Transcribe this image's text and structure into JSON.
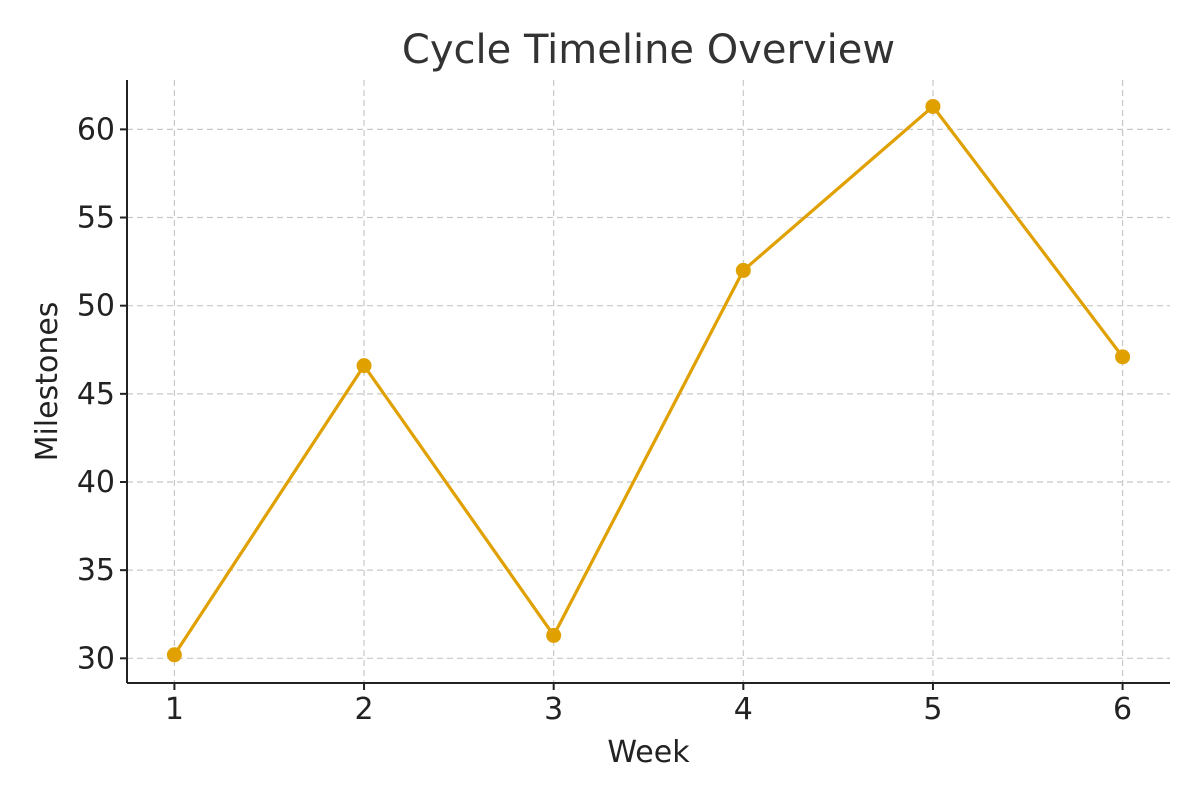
{
  "chart_data": {
    "type": "line",
    "title": "Cycle Timeline Overview",
    "xlabel": "Week",
    "ylabel": "Milestones",
    "x": [
      1,
      2,
      3,
      4,
      5,
      6
    ],
    "x_tick_labels": [
      "1",
      "2",
      "3",
      "4",
      "5",
      "6"
    ],
    "y_ticks": [
      30,
      35,
      40,
      45,
      50,
      55,
      60
    ],
    "y_tick_labels": [
      "30",
      "35",
      "40",
      "45",
      "50",
      "55",
      "60"
    ],
    "xlim": [
      0.75,
      6.25
    ],
    "ylim": [
      28.6,
      62.8
    ],
    "grid": true,
    "series": [
      {
        "color": "#E0A000",
        "values": [
          30.2,
          46.6,
          31.3,
          52.0,
          61.3,
          47.1
        ]
      }
    ]
  }
}
